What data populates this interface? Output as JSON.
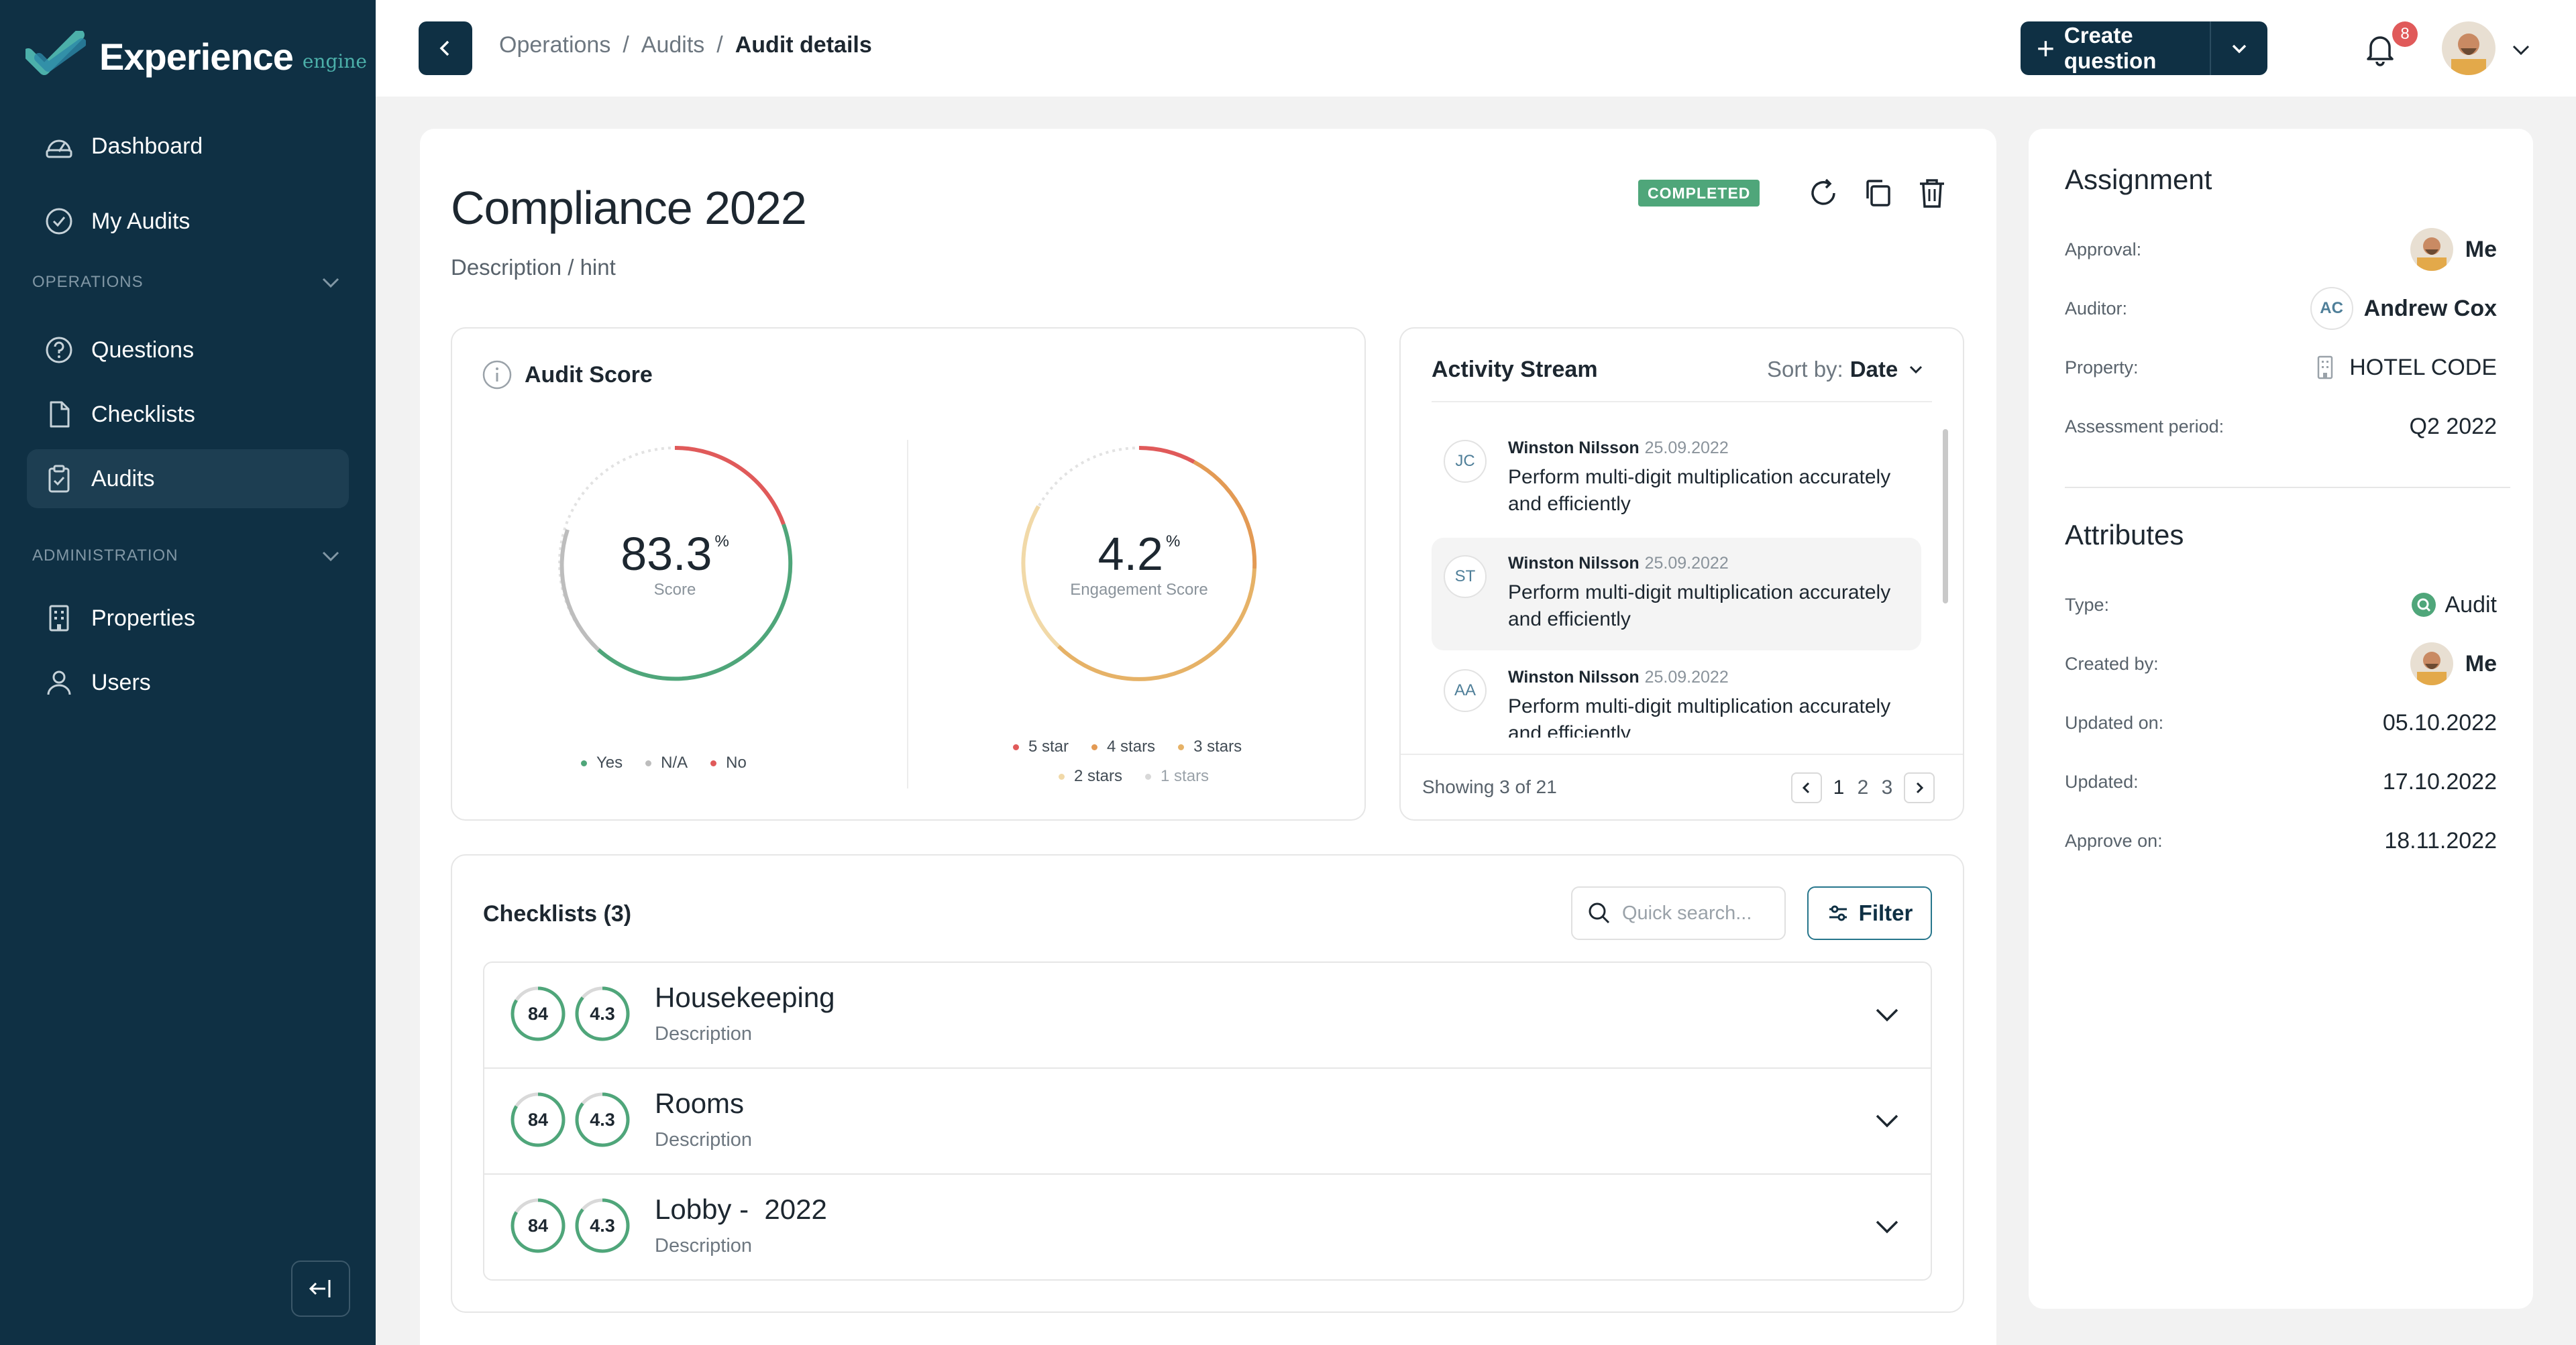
{
  "app": {
    "name": "Experience",
    "sub": "engine"
  },
  "sidebar": {
    "items": [
      {
        "label": "Dashboard",
        "icon": "dashboard-icon"
      },
      {
        "label": "My Audits",
        "icon": "check-circle-icon"
      }
    ],
    "operations_label": "OPERATIONS",
    "operations": [
      {
        "label": "Questions",
        "icon": "question-circle-icon"
      },
      {
        "label": "Checklists",
        "icon": "document-icon"
      },
      {
        "label": "Audits",
        "icon": "clipboard-check-icon",
        "active": true
      }
    ],
    "administration_label": "ADMINISTRATION",
    "administration": [
      {
        "label": "Properties",
        "icon": "building-icon"
      },
      {
        "label": "Users",
        "icon": "user-icon"
      }
    ]
  },
  "header": {
    "breadcrumb": [
      "Operations",
      "Audits",
      "Audit details"
    ],
    "separator": "/",
    "create_label": "Create question",
    "notifications_count": "8"
  },
  "audit": {
    "title": "Compliance 2022",
    "description": "Description / hint",
    "status": "COMPLETED"
  },
  "score": {
    "title": "Audit Score",
    "score_value": "83.3",
    "score_unit": "%",
    "score_label": "Score",
    "score_legend": [
      "Yes",
      "N/A",
      "No"
    ],
    "engagement_value": "4.2",
    "engagement_unit": "%",
    "engagement_label": "Engagement Score",
    "engagement_legend": [
      "5 star",
      "4 stars",
      "3 stars",
      "2 stars",
      "1 stars"
    ],
    "colors": {
      "yes": "#4fa67a",
      "na": "#bdbdbd",
      "no": "#e05a5a",
      "orange": "#e39a54",
      "amber": "#e6b267",
      "light": "#f1d9a8"
    }
  },
  "activity": {
    "title": "Activity Stream",
    "sort_label": "Sort by:",
    "sort_value": "Date",
    "items": [
      {
        "initials": "JC",
        "name": "Winston Nilsson",
        "date": "25.09.2022",
        "text": "Perform multi-digit multiplication accurately and efficiently"
      },
      {
        "initials": "ST",
        "name": "Winston Nilsson",
        "date": "25.09.2022",
        "text": "Perform multi-digit multiplication accurately and efficiently"
      },
      {
        "initials": "AA",
        "name": "Winston Nilsson",
        "date": "25.09.2022",
        "text": "Perform multi-digit multiplication accurately and efficiently"
      }
    ],
    "showing": "Showing 3 of 21",
    "pages": [
      "1",
      "2",
      "3"
    ]
  },
  "checklists": {
    "title": "Checklists (3)",
    "search_placeholder": "Quick search...",
    "filter_label": "Filter",
    "items": [
      {
        "name": "Housekeeping",
        "description": "Description",
        "score": "84",
        "rating": "4.3"
      },
      {
        "name": "Rooms",
        "description": "Description",
        "score": "84",
        "rating": "4.3"
      },
      {
        "name": "Lobby -  2022",
        "description": "Description",
        "score": "84",
        "rating": "4.3"
      }
    ]
  },
  "assignment": {
    "title": "Assignment",
    "approval_label": "Approval:",
    "approval_value": "Me",
    "auditor_label": "Auditor:",
    "auditor_initials": "AC",
    "auditor_value": "Andrew Cox",
    "property_label": "Property:",
    "property_value": "HOTEL CODE",
    "period_label": "Assessment period:",
    "period_value": "Q2 2022"
  },
  "attributes": {
    "title": "Attributes",
    "type_label": "Type:",
    "type_value": "Audit",
    "created_label": "Created by:",
    "created_value": "Me",
    "updated_on_label": "Updated on:",
    "updated_on_value": "05.10.2022",
    "updated_label": "Updated:",
    "updated_value": "17.10.2022",
    "approve_label": "Approve on:",
    "approve_value": "18.11.2022"
  }
}
